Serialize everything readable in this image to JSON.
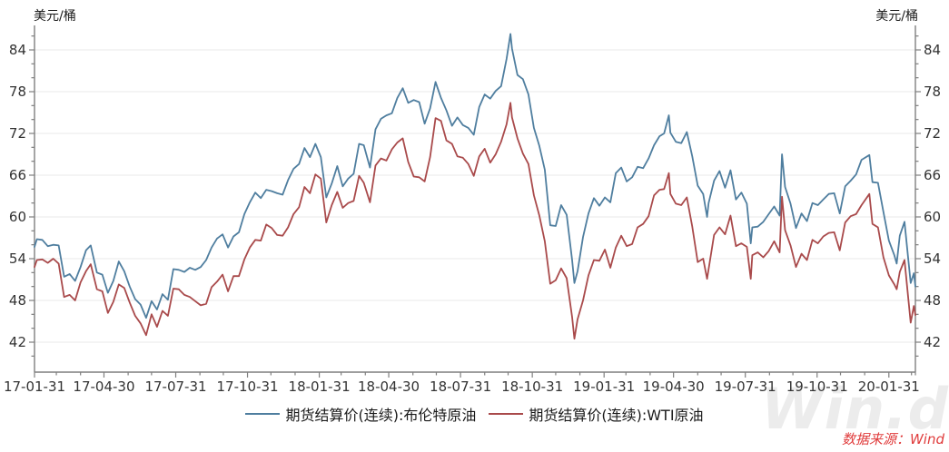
{
  "source_note": "数据来源：Wind",
  "watermark": "Win.d",
  "chart_data": {
    "type": "line",
    "ylabel_left": "美元/桶",
    "ylabel_right": "美元/桶",
    "ylim": [
      37.7,
      87.5
    ],
    "yticks": [
      42,
      48,
      54,
      60,
      66,
      72,
      78,
      84
    ],
    "y_minor_step": 2,
    "grid": "horizontal-major-only",
    "legend_position": "bottom-center",
    "axis_color": "#7f7f7f",
    "grid_color": "#eaeaea",
    "tick_label_color": "#333333",
    "xtick_labels": [
      "17-01-31",
      "17-04-30",
      "17-07-31",
      "17-10-31",
      "18-01-31",
      "18-04-30",
      "18-07-31",
      "18-10-31",
      "19-01-31",
      "19-04-30",
      "19-07-31",
      "19-10-31",
      "20-01-31"
    ],
    "x": [
      "2017-01-31",
      "2017-02-03",
      "2017-02-10",
      "2017-02-17",
      "2017-02-24",
      "2017-03-03",
      "2017-03-10",
      "2017-03-17",
      "2017-03-24",
      "2017-03-31",
      "2017-04-07",
      "2017-04-13",
      "2017-04-21",
      "2017-04-28",
      "2017-05-05",
      "2017-05-12",
      "2017-05-19",
      "2017-05-26",
      "2017-06-02",
      "2017-06-09",
      "2017-06-16",
      "2017-06-23",
      "2017-06-30",
      "2017-07-07",
      "2017-07-14",
      "2017-07-21",
      "2017-07-28",
      "2017-08-04",
      "2017-08-11",
      "2017-08-18",
      "2017-08-25",
      "2017-09-01",
      "2017-09-08",
      "2017-09-15",
      "2017-09-22",
      "2017-09-29",
      "2017-10-06",
      "2017-10-13",
      "2017-10-20",
      "2017-10-27",
      "2017-11-03",
      "2017-11-10",
      "2017-11-17",
      "2017-11-24",
      "2017-12-01",
      "2017-12-08",
      "2017-12-15",
      "2017-12-22",
      "2017-12-29",
      "2018-01-05",
      "2018-01-12",
      "2018-01-19",
      "2018-01-26",
      "2018-02-02",
      "2018-02-09",
      "2018-02-16",
      "2018-02-23",
      "2018-03-02",
      "2018-03-09",
      "2018-03-16",
      "2018-03-23",
      "2018-03-29",
      "2018-04-06",
      "2018-04-13",
      "2018-04-20",
      "2018-04-27",
      "2018-05-04",
      "2018-05-11",
      "2018-05-18",
      "2018-05-25",
      "2018-06-01",
      "2018-06-08",
      "2018-06-15",
      "2018-06-22",
      "2018-06-29",
      "2018-07-06",
      "2018-07-13",
      "2018-07-20",
      "2018-07-27",
      "2018-08-03",
      "2018-08-10",
      "2018-08-17",
      "2018-08-24",
      "2018-08-31",
      "2018-09-07",
      "2018-09-14",
      "2018-09-21",
      "2018-09-28",
      "2018-10-03",
      "2018-10-05",
      "2018-10-12",
      "2018-10-19",
      "2018-10-26",
      "2018-11-02",
      "2018-11-09",
      "2018-11-16",
      "2018-11-23",
      "2018-11-30",
      "2018-12-07",
      "2018-12-14",
      "2018-12-21",
      "2018-12-24",
      "2018-12-28",
      "2019-01-04",
      "2019-01-11",
      "2019-01-18",
      "2019-01-25",
      "2019-02-01",
      "2019-02-08",
      "2019-02-15",
      "2019-02-22",
      "2019-03-01",
      "2019-03-08",
      "2019-03-15",
      "2019-03-22",
      "2019-03-29",
      "2019-04-05",
      "2019-04-12",
      "2019-04-18",
      "2019-04-24",
      "2019-04-26",
      "2019-05-03",
      "2019-05-10",
      "2019-05-17",
      "2019-05-24",
      "2019-05-31",
      "2019-06-07",
      "2019-06-12",
      "2019-06-14",
      "2019-06-21",
      "2019-06-28",
      "2019-07-05",
      "2019-07-12",
      "2019-07-19",
      "2019-07-26",
      "2019-08-02",
      "2019-08-07",
      "2019-08-09",
      "2019-08-16",
      "2019-08-23",
      "2019-08-30",
      "2019-09-06",
      "2019-09-13",
      "2019-09-16",
      "2019-09-20",
      "2019-09-27",
      "2019-10-04",
      "2019-10-11",
      "2019-10-18",
      "2019-10-25",
      "2019-11-01",
      "2019-11-08",
      "2019-11-15",
      "2019-11-22",
      "2019-11-29",
      "2019-12-06",
      "2019-12-13",
      "2019-12-20",
      "2019-12-27",
      "2020-01-06",
      "2020-01-10",
      "2020-01-17",
      "2020-01-24",
      "2020-01-31",
      "2020-02-07",
      "2020-02-10",
      "2020-02-14",
      "2020-02-20",
      "2020-02-28",
      "2020-03-03",
      "2020-03-05"
    ],
    "series": [
      {
        "name": "期货结算价(连续):布伦特原油",
        "color": "#4f7e9f",
        "values": [
          55.7,
          56.8,
          56.7,
          55.8,
          56.0,
          55.9,
          51.4,
          51.8,
          50.8,
          52.8,
          55.2,
          55.9,
          52.0,
          51.7,
          49.1,
          50.8,
          53.6,
          52.2,
          50.0,
          48.2,
          47.4,
          45.5,
          47.9,
          46.7,
          48.9,
          48.1,
          52.5,
          52.4,
          52.1,
          52.7,
          52.4,
          52.8,
          53.8,
          55.6,
          56.9,
          57.5,
          55.6,
          57.2,
          57.8,
          60.4,
          62.1,
          63.5,
          62.7,
          63.9,
          63.7,
          63.4,
          63.2,
          65.3,
          66.9,
          67.6,
          69.9,
          68.6,
          70.5,
          68.6,
          62.8,
          64.8,
          67.3,
          64.4,
          65.5,
          66.2,
          70.5,
          70.3,
          67.1,
          72.6,
          74.1,
          74.6,
          74.9,
          77.1,
          78.5,
          76.4,
          76.8,
          76.5,
          73.4,
          75.6,
          79.4,
          77.1,
          75.3,
          73.1,
          74.3,
          73.2,
          72.8,
          71.8,
          75.8,
          77.6,
          77.0,
          78.1,
          78.8,
          82.7,
          86.3,
          84.2,
          80.4,
          79.8,
          77.6,
          72.8,
          70.2,
          66.8,
          58.8,
          58.7,
          61.7,
          60.3,
          53.8,
          50.5,
          52.2,
          57.1,
          60.5,
          62.7,
          61.6,
          62.8,
          62.1,
          66.3,
          67.1,
          65.1,
          65.7,
          67.2,
          67.0,
          68.4,
          70.3,
          71.6,
          72.0,
          74.6,
          72.1,
          70.8,
          70.6,
          72.2,
          68.7,
          64.5,
          63.3,
          60.0,
          62.0,
          65.2,
          66.6,
          64.2,
          66.7,
          62.5,
          63.5,
          61.9,
          56.2,
          58.5,
          58.6,
          59.3,
          60.4,
          61.5,
          60.2,
          69.0,
          64.3,
          61.9,
          58.4,
          60.5,
          59.4,
          62.0,
          61.7,
          62.5,
          63.3,
          63.4,
          60.5,
          64.4,
          65.2,
          66.1,
          68.2,
          68.9,
          65.0,
          64.9,
          60.7,
          56.6,
          54.5,
          53.3,
          57.3,
          59.3,
          50.5,
          51.9,
          50.0
        ]
      },
      {
        "name": "期货结算价(连续):WTI原油",
        "color": "#a94a4b",
        "values": [
          52.8,
          53.8,
          53.9,
          53.4,
          54.0,
          53.3,
          48.5,
          48.8,
          48.0,
          50.6,
          52.2,
          53.2,
          49.6,
          49.3,
          46.2,
          47.8,
          50.3,
          49.8,
          47.7,
          45.8,
          44.7,
          43.0,
          46.0,
          44.2,
          46.5,
          45.8,
          49.7,
          49.6,
          48.8,
          48.5,
          47.9,
          47.3,
          47.5,
          49.9,
          50.7,
          51.7,
          49.3,
          51.5,
          51.5,
          53.9,
          55.6,
          56.7,
          56.6,
          58.9,
          58.4,
          57.4,
          57.3,
          58.5,
          60.4,
          61.4,
          64.3,
          63.4,
          66.1,
          65.5,
          59.2,
          61.7,
          63.6,
          61.3,
          62.0,
          62.3,
          65.9,
          64.9,
          62.1,
          67.4,
          68.4,
          68.1,
          69.7,
          70.7,
          71.3,
          67.9,
          65.8,
          65.7,
          65.1,
          68.6,
          74.2,
          73.8,
          71.0,
          70.5,
          68.7,
          68.5,
          67.6,
          65.9,
          68.7,
          69.8,
          67.8,
          69.0,
          70.8,
          73.3,
          76.4,
          74.3,
          71.3,
          69.1,
          67.6,
          63.1,
          60.2,
          56.5,
          50.4,
          50.9,
          52.6,
          51.2,
          45.6,
          42.5,
          45.3,
          48.0,
          51.6,
          53.8,
          53.7,
          55.3,
          52.7,
          55.6,
          57.3,
          55.8,
          56.1,
          58.5,
          59.0,
          60.1,
          63.1,
          63.9,
          64.0,
          66.3,
          63.3,
          61.9,
          61.7,
          62.8,
          58.6,
          53.5,
          54.0,
          51.1,
          52.5,
          57.4,
          58.5,
          57.5,
          60.2,
          55.8,
          56.2,
          55.7,
          51.1,
          54.5,
          54.9,
          54.2,
          55.1,
          56.5,
          54.9,
          62.9,
          58.1,
          55.9,
          52.8,
          54.7,
          53.8,
          56.7,
          56.2,
          57.2,
          57.7,
          57.8,
          55.2,
          59.2,
          60.1,
          60.4,
          61.7,
          63.3,
          59.0,
          58.5,
          54.2,
          51.6,
          50.3,
          49.6,
          52.1,
          53.8,
          44.8,
          47.2,
          45.9
        ]
      }
    ]
  }
}
